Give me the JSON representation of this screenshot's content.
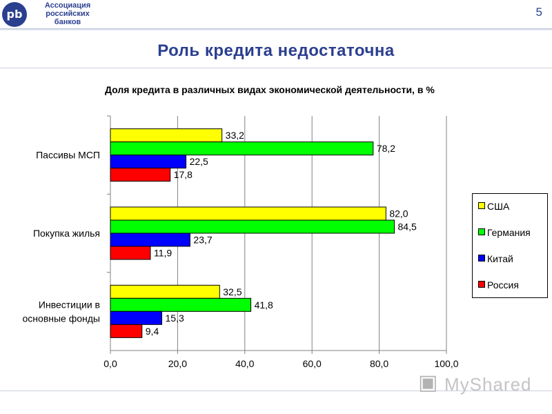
{
  "header": {
    "logo_mark": "pb",
    "logo_line1": "Ассоциация",
    "logo_line2": "российских",
    "logo_line3": "банков",
    "page_number": "5",
    "title": "Роль кредита недостаточна"
  },
  "colors": {
    "brand": "#2b3f8f",
    "usa": "#ffff00",
    "germany": "#00ff00",
    "china": "#0000ff",
    "russia": "#ff0000"
  },
  "chart_data": {
    "type": "bar",
    "orientation": "horizontal",
    "title": "Доля кредита в различных видах экономической деятельности, в %",
    "categories": [
      "Пассивы МСП",
      "Покупка жилья",
      "Инвестиции в основные фонды"
    ],
    "category_lines": [
      [
        "Пассивы МСП"
      ],
      [
        "Покупка жилья"
      ],
      [
        "Инвестиции в",
        "основные фонды"
      ]
    ],
    "series": [
      {
        "name": "США",
        "color": "#ffff00",
        "values": [
          33.2,
          82.0,
          32.5
        ],
        "labels": [
          "33,2",
          "82,0",
          "32,5"
        ]
      },
      {
        "name": "Германия",
        "color": "#00ff00",
        "values": [
          78.2,
          84.5,
          41.8
        ],
        "labels": [
          "78,2",
          "84,5",
          "41,8"
        ]
      },
      {
        "name": "Китай",
        "color": "#0000ff",
        "values": [
          22.5,
          23.7,
          15.3
        ],
        "labels": [
          "22,5",
          "23,7",
          "15,3"
        ]
      },
      {
        "name": "Россия",
        "color": "#ff0000",
        "values": [
          17.8,
          11.9,
          9.4
        ],
        "labels": [
          "17,8",
          "11,9",
          "9,4"
        ]
      }
    ],
    "xlim": [
      0,
      100
    ],
    "x_ticks": [
      0,
      20,
      40,
      60,
      80,
      100
    ],
    "x_tick_labels": [
      "0,0",
      "20,0",
      "40,0",
      "60,0",
      "80,0",
      "100,0"
    ],
    "grid": "vertical",
    "legend": "right"
  },
  "watermark": {
    "text": "MyShared"
  }
}
